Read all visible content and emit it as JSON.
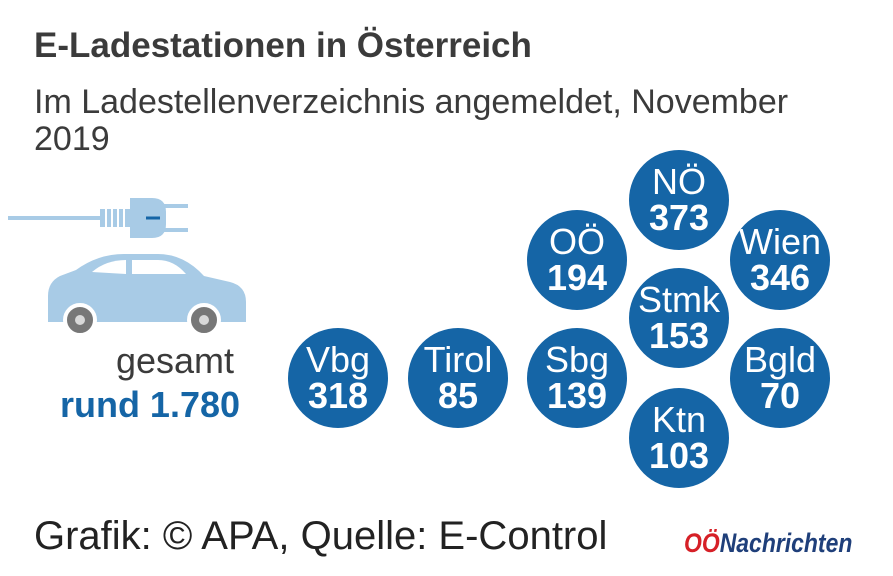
{
  "header": {
    "title": "E-Ladestationen in Österreich",
    "subtitle": "Im Ladestellenverzeichnis angemeldet, November 2019"
  },
  "summary": {
    "label": "gesamt",
    "value": "rund 1.780"
  },
  "chart_data": {
    "type": "bubble",
    "title": "E-Ladestationen in Österreich",
    "subtitle": "Im Ladestellenverzeichnis angemeldet, November 2019",
    "categories": [
      "NÖ",
      "OÖ",
      "Wien",
      "Stmk",
      "Vbg",
      "Tirol",
      "Sbg",
      "Bgld",
      "Ktn"
    ],
    "values": [
      373,
      194,
      346,
      153,
      318,
      85,
      139,
      70,
      103
    ],
    "total_label": "gesamt",
    "total_value": "rund 1.780",
    "bubble_color": "#1565a6"
  },
  "footer": {
    "source": "Grafik: © APA, Quelle: E-Control",
    "logo_prefix": "OÖ",
    "logo_name": "Nachrichten"
  },
  "colors": {
    "accent": "#1565a6",
    "car": "#a8cbe6",
    "logo_red": "#d62027",
    "logo_blue": "#1f3f7a"
  }
}
